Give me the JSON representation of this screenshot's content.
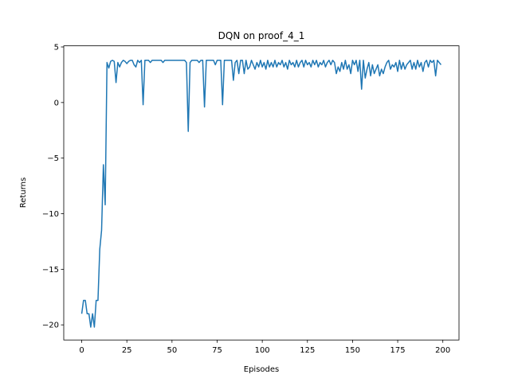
{
  "chart_data": {
    "type": "line",
    "title": "DQN on proof_4_1",
    "xlabel": "Episodes",
    "ylabel": "Returns",
    "color": "#1f77b4",
    "x": [
      0,
      1,
      2,
      3,
      4,
      5,
      6,
      7,
      8,
      9,
      10,
      11,
      12,
      13,
      14,
      15,
      16,
      17,
      18,
      19,
      20,
      21,
      22,
      23,
      24,
      25,
      26,
      27,
      28,
      29,
      30,
      31,
      32,
      33,
      34,
      35,
      36,
      37,
      38,
      39,
      40,
      41,
      42,
      43,
      44,
      45,
      46,
      47,
      48,
      49,
      50,
      51,
      52,
      53,
      54,
      55,
      56,
      57,
      58,
      59,
      60,
      61,
      62,
      63,
      64,
      65,
      66,
      67,
      68,
      69,
      70,
      71,
      72,
      73,
      74,
      75,
      76,
      77,
      78,
      79,
      80,
      81,
      82,
      83,
      84,
      85,
      86,
      87,
      88,
      89,
      90,
      91,
      92,
      93,
      94,
      95,
      96,
      97,
      98,
      99,
      100,
      101,
      102,
      103,
      104,
      105,
      106,
      107,
      108,
      109,
      110,
      111,
      112,
      113,
      114,
      115,
      116,
      117,
      118,
      119,
      120,
      121,
      122,
      123,
      124,
      125,
      126,
      127,
      128,
      129,
      130,
      131,
      132,
      133,
      134,
      135,
      136,
      137,
      138,
      139,
      140,
      141,
      142,
      143,
      144,
      145,
      146,
      147,
      148,
      149,
      150,
      151,
      152,
      153,
      154,
      155,
      156,
      157,
      158,
      159,
      160,
      161,
      162,
      163,
      164,
      165,
      166,
      167,
      168,
      169,
      170,
      171,
      172,
      173,
      174,
      175,
      176,
      177,
      178,
      179,
      180,
      181,
      182,
      183,
      184,
      185,
      186,
      187,
      188,
      189,
      190,
      191,
      192,
      193,
      194,
      195,
      196,
      197,
      198,
      199
    ],
    "values": [
      -19,
      -17.8,
      -17.8,
      -19,
      -19,
      -20.2,
      -19,
      -20.2,
      -17.8,
      -17.8,
      -13.2,
      -11.5,
      -5.6,
      -9.2,
      3.6,
      3.1,
      3.7,
      3.8,
      3.7,
      1.8,
      3.6,
      3.2,
      3.6,
      3.8,
      3.7,
      3.5,
      3.7,
      3.8,
      3.8,
      3.4,
      3.2,
      3.8,
      3.6,
      3.8,
      -0.2,
      3.8,
      3.8,
      3.8,
      3.6,
      3.8,
      3.8,
      3.8,
      3.8,
      3.8,
      3.8,
      3.6,
      3.8,
      3.8,
      3.8,
      3.8,
      3.8,
      3.8,
      3.8,
      3.8,
      3.8,
      3.8,
      3.8,
      3.8,
      3.6,
      -2.6,
      3.6,
      3.8,
      3.8,
      3.8,
      3.8,
      3.6,
      3.8,
      3.8,
      -0.4,
      3.8,
      3.8,
      3.8,
      3.8,
      3.8,
      3.4,
      3.8,
      3.8,
      3.8,
      -0.2,
      3.8,
      3.8,
      3.8,
      3.8,
      3.8,
      2.0,
      3.6,
      3.8,
      2.6,
      3.8,
      3.8,
      2.6,
      3.8,
      3.0,
      3.2,
      3.8,
      3.4,
      3.0,
      3.6,
      3.2,
      3.8,
      3.2,
      3.6,
      3.0,
      3.8,
      3.2,
      3.6,
      3.2,
      3.8,
      3.2,
      3.6,
      3.4,
      3.8,
      3.2,
      3.6,
      3.0,
      3.8,
      3.4,
      3.6,
      3.2,
      3.8,
      3.2,
      3.6,
      3.8,
      3.2,
      3.8,
      3.4,
      3.6,
      3.2,
      3.8,
      3.4,
      3.8,
      3.2,
      3.6,
      3.4,
      3.8,
      3.2,
      3.6,
      3.8,
      3.4,
      3.8,
      3.6,
      2.6,
      3.2,
      2.8,
      3.6,
      3.0,
      3.8,
      3.0,
      3.4,
      2.6,
      3.8,
      3.4,
      3.8,
      2.8,
      3.8,
      1.2,
      3.8,
      2.2,
      3.0,
      3.6,
      2.4,
      3.4,
      2.6,
      3.0,
      3.4,
      2.4,
      3.0,
      2.6,
      3.2,
      3.6,
      3.8,
      3.0,
      3.4,
      3.2,
      3.6,
      2.8,
      3.8,
      3.0,
      3.6,
      3.0,
      3.4,
      3.6,
      3.8,
      3.0,
      3.6,
      3.0,
      3.8,
      3.2,
      3.6,
      2.8,
      3.6,
      3.8,
      3.2,
      3.8,
      3.6,
      3.8,
      2.4,
      3.8,
      3.6,
      3.4
    ],
    "xlim": [
      -9.95,
      208.95
    ],
    "ylim": [
      -21.36,
      5.1
    ],
    "xticks": [
      0,
      25,
      50,
      75,
      100,
      125,
      150,
      175,
      200
    ],
    "yticks": [
      {
        "value": -20,
        "label": "−20"
      },
      {
        "value": -15,
        "label": "−15"
      },
      {
        "value": -10,
        "label": "−10"
      },
      {
        "value": -5,
        "label": "−5"
      },
      0,
      5
    ]
  }
}
